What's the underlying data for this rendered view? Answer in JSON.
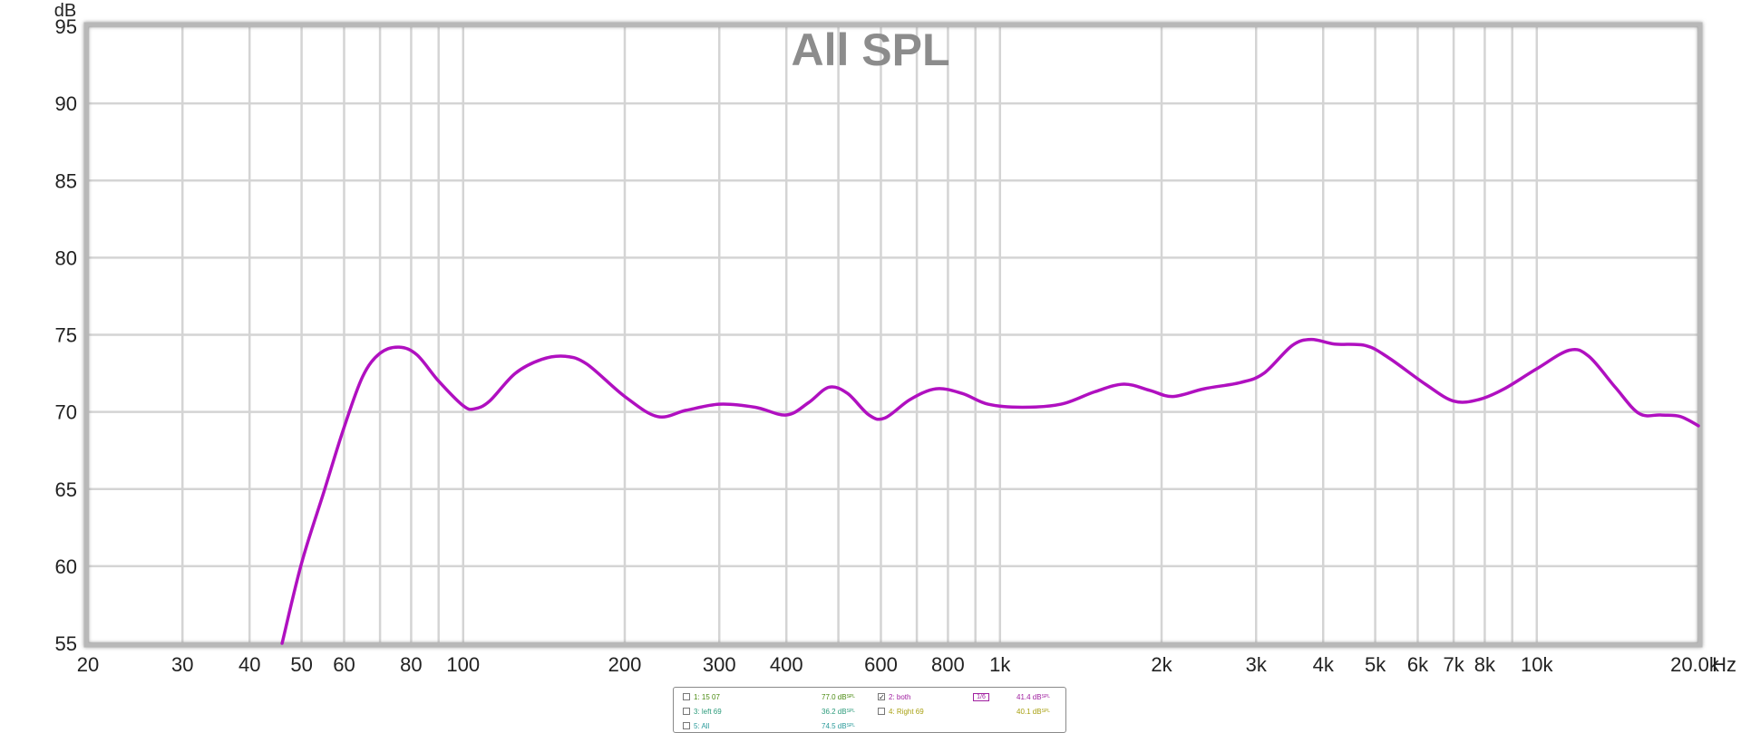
{
  "chart_data": {
    "type": "line",
    "title": "All SPL",
    "ylabel": "dB",
    "xunit": "Hz",
    "xscale": "log",
    "xlim": [
      20,
      20000
    ],
    "ylim": [
      55,
      95
    ],
    "grid": true,
    "yticks": [
      55,
      60,
      65,
      70,
      75,
      80,
      85,
      90,
      95
    ],
    "xticks": [
      {
        "v": 20,
        "label": "20"
      },
      {
        "v": 30,
        "label": "30"
      },
      {
        "v": 40,
        "label": "40"
      },
      {
        "v": 50,
        "label": "50"
      },
      {
        "v": 60,
        "label": "60"
      },
      {
        "v": 80,
        "label": "80"
      },
      {
        "v": 100,
        "label": "100"
      },
      {
        "v": 200,
        "label": "200"
      },
      {
        "v": 300,
        "label": "300"
      },
      {
        "v": 400,
        "label": "400"
      },
      {
        "v": 600,
        "label": "600"
      },
      {
        "v": 800,
        "label": "800"
      },
      {
        "v": 1000,
        "label": "1k"
      },
      {
        "v": 2000,
        "label": "2k"
      },
      {
        "v": 3000,
        "label": "3k"
      },
      {
        "v": 4000,
        "label": "4k"
      },
      {
        "v": 5000,
        "label": "5k"
      },
      {
        "v": 6000,
        "label": "6k"
      },
      {
        "v": 7000,
        "label": "7k"
      },
      {
        "v": 8000,
        "label": "8k"
      },
      {
        "v": 10000,
        "label": "10k"
      },
      {
        "v": 20000,
        "label": "20.0k"
      }
    ],
    "gridx": [
      20,
      30,
      40,
      50,
      60,
      70,
      80,
      90,
      100,
      200,
      300,
      400,
      500,
      600,
      700,
      800,
      900,
      1000,
      2000,
      3000,
      4000,
      5000,
      6000,
      7000,
      8000,
      9000,
      10000,
      20000
    ],
    "series": [
      {
        "color": "#b010c0",
        "points": [
          [
            46,
            55
          ],
          [
            50,
            60.2
          ],
          [
            55,
            64.8
          ],
          [
            60,
            69
          ],
          [
            65,
            72.3
          ],
          [
            70,
            73.8
          ],
          [
            76,
            74.2
          ],
          [
            82,
            73.7
          ],
          [
            90,
            72.0
          ],
          [
            100,
            70.4
          ],
          [
            105,
            70.2
          ],
          [
            112,
            70.7
          ],
          [
            125,
            72.5
          ],
          [
            140,
            73.4
          ],
          [
            155,
            73.6
          ],
          [
            170,
            73.1
          ],
          [
            200,
            71.0
          ],
          [
            230,
            69.7
          ],
          [
            260,
            70.1
          ],
          [
            300,
            70.5
          ],
          [
            350,
            70.3
          ],
          [
            400,
            69.8
          ],
          [
            440,
            70.6
          ],
          [
            480,
            71.6
          ],
          [
            520,
            71.2
          ],
          [
            570,
            69.8
          ],
          [
            610,
            69.6
          ],
          [
            680,
            70.8
          ],
          [
            760,
            71.5
          ],
          [
            850,
            71.2
          ],
          [
            950,
            70.5
          ],
          [
            1100,
            70.3
          ],
          [
            1300,
            70.5
          ],
          [
            1500,
            71.3
          ],
          [
            1700,
            71.8
          ],
          [
            1900,
            71.4
          ],
          [
            2100,
            71.0
          ],
          [
            2400,
            71.5
          ],
          [
            2800,
            71.9
          ],
          [
            3100,
            72.5
          ],
          [
            3500,
            74.3
          ],
          [
            3800,
            74.7
          ],
          [
            4200,
            74.4
          ],
          [
            4800,
            74.3
          ],
          [
            5300,
            73.5
          ],
          [
            6200,
            71.8
          ],
          [
            7000,
            70.7
          ],
          [
            7800,
            70.8
          ],
          [
            8700,
            71.5
          ],
          [
            10000,
            72.8
          ],
          [
            11500,
            74.0
          ],
          [
            12500,
            73.6
          ],
          [
            14000,
            71.6
          ],
          [
            15500,
            69.9
          ],
          [
            17000,
            69.8
          ],
          [
            18500,
            69.7
          ],
          [
            20000,
            69.1
          ]
        ]
      }
    ]
  },
  "legend": {
    "items": [
      {
        "label": "1: 15 07",
        "value": "77.0 dB",
        "sup": "SPL",
        "checked": false,
        "color": "#4a8a10",
        "valcolor": "#4a8a10"
      },
      {
        "label": "2: both",
        "value": "41.4 dB",
        "sup": "SPL",
        "checked": true,
        "color": "#a020a0",
        "valcolor": "#a020a0",
        "smoothing": "1/6"
      },
      {
        "label": "3: left 69",
        "value": "36.2 dB",
        "sup": "SPL",
        "checked": false,
        "color": "#2a9a7a",
        "valcolor": "#2a9a7a"
      },
      {
        "label": "4: Right 69",
        "value": "40.1 dB",
        "sup": "SPL",
        "checked": false,
        "color": "#a8a010",
        "valcolor": "#a8a010"
      },
      {
        "label": "5: All",
        "value": "74.5 dB",
        "sup": "SPL",
        "checked": false,
        "color": "#2a9a9a",
        "valcolor": "#2a9a9a"
      }
    ]
  }
}
